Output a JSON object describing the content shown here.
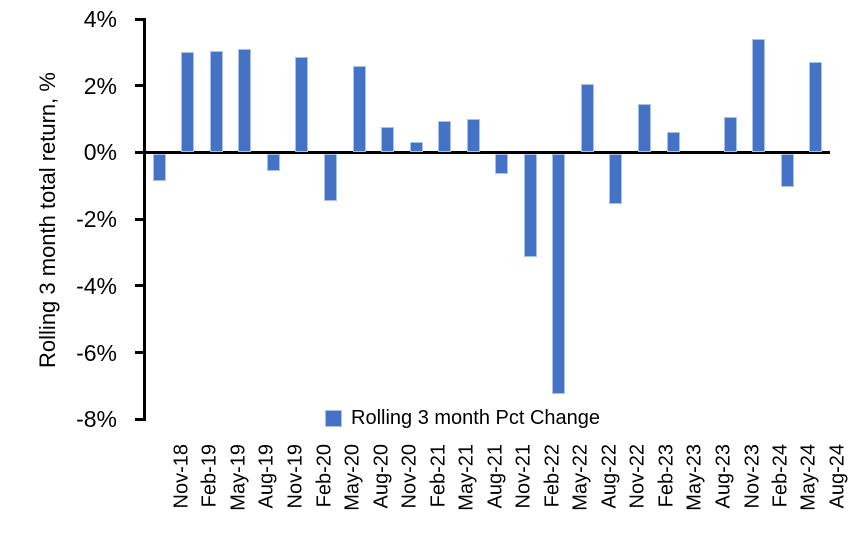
{
  "chart_data": {
    "type": "bar",
    "title": "",
    "xlabel": "",
    "ylabel": "Rolling 3 month total return, %",
    "ylim": [
      -8,
      4
    ],
    "yticks": [
      4,
      2,
      0,
      -2,
      -4,
      -6,
      -8
    ],
    "ytick_labels": [
      "4%",
      "2%",
      "0%",
      "-2%",
      "-4%",
      "-6%",
      "-8%"
    ],
    "grid": false,
    "legend_position": "bottom-center",
    "legend": [
      "Rolling 3 month Pct Change"
    ],
    "bar_color": "#4472C4",
    "bar_border_color": "#a9c0e8",
    "axis_color": "#000000",
    "categories": [
      "Nov-18",
      "Feb-19",
      "May-19",
      "Aug-19",
      "Nov-19",
      "Feb-20",
      "May-20",
      "Aug-20",
      "Nov-20",
      "Feb-21",
      "May-21",
      "Aug-21",
      "Nov-21",
      "Feb-22",
      "May-22",
      "Aug-22",
      "Nov-22",
      "Feb-23",
      "May-23",
      "Aug-23",
      "Nov-23",
      "Feb-24",
      "May-24",
      "Aug-24"
    ],
    "values": [
      -0.8,
      3.0,
      3.05,
      3.1,
      -0.5,
      2.85,
      -1.4,
      2.6,
      0.75,
      0.3,
      0.95,
      1.0,
      -0.6,
      -3.1,
      -7.2,
      2.05,
      -1.5,
      1.45,
      0.6,
      0.0,
      1.05,
      3.4,
      -1.0,
      2.7
    ]
  }
}
